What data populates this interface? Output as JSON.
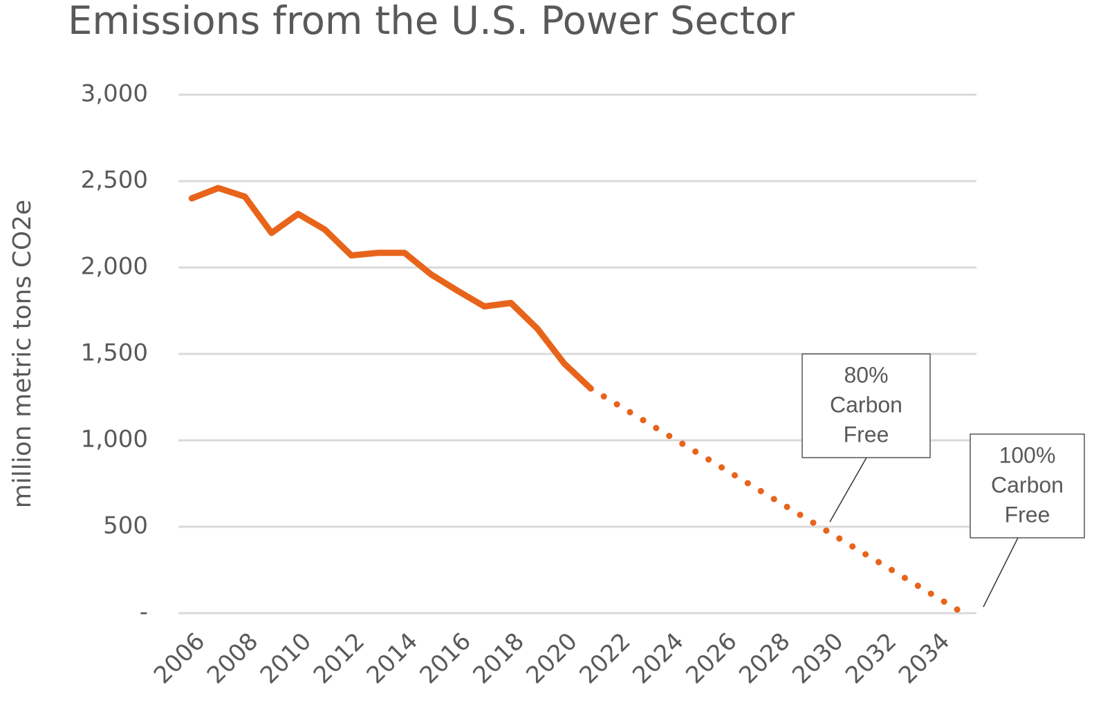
{
  "chart_data": {
    "type": "line",
    "title": "Emissions from the U.S. Power Sector",
    "y_label": "million metric tons CO2e",
    "x": [
      2006,
      2007,
      2008,
      2009,
      2010,
      2011,
      2012,
      2013,
      2014,
      2015,
      2016,
      2017,
      2018,
      2019,
      2020,
      2021,
      2022,
      2023,
      2024,
      2025,
      2026,
      2027,
      2028,
      2029,
      2030,
      2031,
      2032,
      2033,
      2034,
      2035
    ],
    "series": [
      {
        "color": "#e8641b",
        "style": "solid",
        "values": [
          2400,
          2460,
          2410,
          2200,
          2310,
          2220,
          2070,
          2085,
          2085,
          1960,
          1865,
          1775,
          1795,
          1645,
          1445,
          1300,
          null,
          null,
          null,
          null,
          null,
          null,
          null,
          null,
          null,
          null,
          null,
          null,
          null,
          null
        ]
      },
      {
        "color": "#e8641b",
        "style": "dotted",
        "values": [
          null,
          null,
          null,
          null,
          null,
          null,
          null,
          null,
          null,
          null,
          null,
          null,
          null,
          null,
          null,
          1300,
          1207,
          1114,
          1021,
          929,
          836,
          743,
          650,
          557,
          464,
          371,
          279,
          186,
          93,
          0
        ]
      }
    ],
    "xlim": [
      2005.5,
      2035.5
    ],
    "xticks": [
      2006,
      2008,
      2010,
      2012,
      2014,
      2016,
      2018,
      2020,
      2022,
      2024,
      2026,
      2028,
      2030,
      2032,
      2034
    ],
    "ylim": [
      0,
      3000
    ],
    "yticks": [
      {
        "value": 0,
        "label": "-"
      },
      {
        "value": 500,
        "label": "500"
      },
      {
        "value": 1000,
        "label": "1,000"
      },
      {
        "value": 1500,
        "label": "1,500"
      },
      {
        "value": 2000,
        "label": "2,000"
      },
      {
        "value": 2500,
        "label": "2,500"
      },
      {
        "value": 3000,
        "label": "3,000"
      }
    ],
    "grid": true,
    "annotations": [
      {
        "lines": [
          "80%",
          "Carbon",
          "Free"
        ]
      },
      {
        "lines": [
          "100%",
          "Carbon",
          "Free"
        ]
      }
    ]
  }
}
